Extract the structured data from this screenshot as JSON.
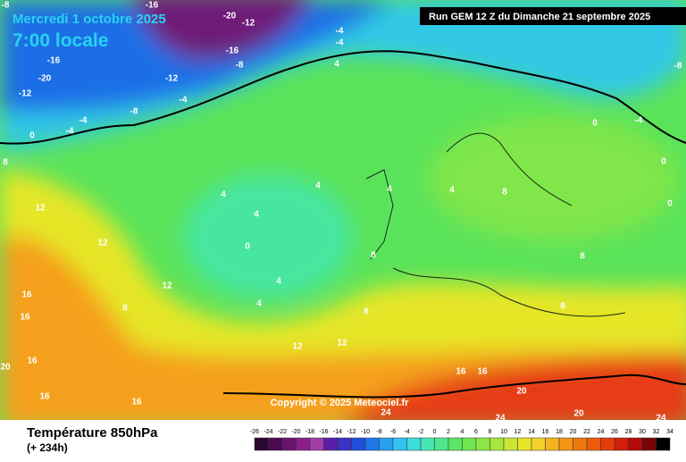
{
  "header": {
    "date": "Mercredi 1 octobre 2025",
    "time": "7:00 locale",
    "run": "Run GEM 12 Z du Dimanche 21 septembre 2025"
  },
  "copyright": "Copyright © 2025 Meteociel.fr",
  "footer": {
    "variable": "Température 850hPa",
    "lead_time": "(+ 234h)"
  },
  "scale": {
    "ticks": [
      -26,
      -24,
      -22,
      -20,
      -18,
      -16,
      -14,
      -12,
      -10,
      -8,
      -6,
      -4,
      -2,
      0,
      2,
      4,
      6,
      8,
      10,
      12,
      14,
      16,
      18,
      20,
      22,
      24,
      26,
      28,
      30,
      32,
      34
    ],
    "colors": [
      "#2a0630",
      "#4a0a52",
      "#6a1470",
      "#8c1e8c",
      "#a03ca8",
      "#5a1eaa",
      "#3c32c8",
      "#1e50dc",
      "#1e78eb",
      "#28a0f0",
      "#32c3f5",
      "#3cdcdc",
      "#46e6b4",
      "#50e68c",
      "#5ae664",
      "#6ee650",
      "#8ce646",
      "#aae63c",
      "#c8e632",
      "#e6e628",
      "#f0d228",
      "#f5b41e",
      "#f59614",
      "#f0780f",
      "#eb5a0a",
      "#e63c0a",
      "#d21e0a",
      "#b40a0a",
      "#780505",
      "#000000"
    ]
  },
  "contour_labels": [
    -8,
    -16,
    -20,
    -12,
    -4,
    -16,
    -8,
    -12,
    -16,
    -20,
    -12,
    -8,
    -4,
    -4,
    0,
    8,
    -4,
    4,
    -4,
    4,
    4,
    0,
    4,
    4,
    4,
    8,
    0,
    -4,
    -8,
    0,
    0,
    12,
    12,
    12,
    16,
    16,
    8,
    4,
    4,
    8,
    8,
    12,
    12,
    16,
    20,
    16,
    16,
    16,
    16,
    20,
    24,
    20,
    24,
    24,
    8,
    8
  ]
}
